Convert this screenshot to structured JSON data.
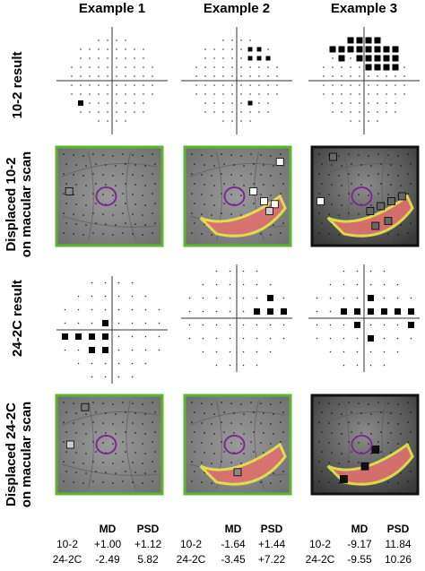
{
  "columns": [
    "Example 1",
    "Example 2",
    "Example 3"
  ],
  "row_labels": [
    [
      "10-2 result"
    ],
    [
      "Displaced 10-2",
      "on macular scan"
    ],
    [
      "24-2C result"
    ],
    [
      "Displaced 24-2C",
      "on macular scan"
    ]
  ],
  "stats": {
    "headers": [
      "MD",
      "PSD"
    ],
    "examples": [
      {
        "rows": [
          {
            "test": "10-2",
            "md": "+1.00",
            "psd": "+1.12"
          },
          {
            "test": "24-2C",
            "md": "-2.49",
            "psd": "5.82"
          }
        ]
      },
      {
        "rows": [
          {
            "test": "10-2",
            "md": "-1.64",
            "psd": "+1.44"
          },
          {
            "test": "24-2C",
            "md": "-3.45",
            "psd": "+7.22"
          }
        ]
      },
      {
        "rows": [
          {
            "test": "10-2",
            "md": "-9.17",
            "psd": "11.84"
          },
          {
            "test": "24-2C",
            "md": "-9.55",
            "psd": "10.26"
          }
        ]
      }
    ]
  }
}
